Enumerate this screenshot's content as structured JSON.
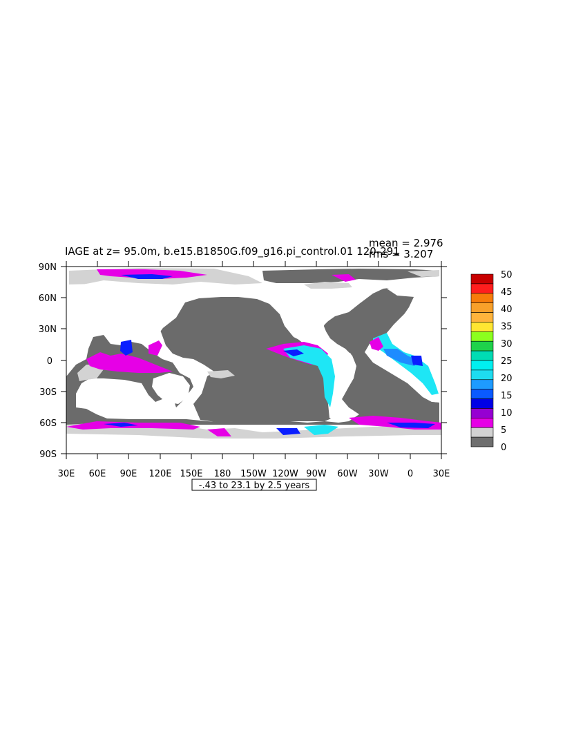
{
  "title": "IAGE at z=  95.0m, b.e15.B1850G.f09_g16.pi_control.01 120-291",
  "stats": {
    "mean": "mean = 2.976",
    "rms": "rms = 3.207"
  },
  "subtitle": "-.43 to 23.1 by 2.5 years",
  "axes": {
    "lat_ticks": [
      "90N",
      "60N",
      "30N",
      "0",
      "30S",
      "60S",
      "90S"
    ],
    "lon_ticks": [
      "30E",
      "60E",
      "90E",
      "120E",
      "150E",
      "180",
      "150W",
      "120W",
      "90W",
      "60W",
      "30W",
      "0",
      "30E"
    ]
  },
  "colorbar": {
    "labels": [
      "50",
      "45",
      "40",
      "35",
      "30",
      "25",
      "20",
      "15",
      "10",
      "5",
      "0"
    ],
    "colors": [
      "#c80000",
      "#ff1e1e",
      "#f77c0a",
      "#f8a02a",
      "#ffb43c",
      "#ffe632",
      "#8cff1e",
      "#1ed24b",
      "#00dcb4",
      "#00f0f0",
      "#1edcf0",
      "#1e9bff",
      "#0a5aff",
      "#0000e6",
      "#9600d2",
      "#e600e6",
      "#d2d2d2",
      "#6e6e6e"
    ]
  },
  "palette": {
    "ocean": "#6b6b6b",
    "land": "#ffffff",
    "shelf": "#d3d3d3",
    "magenta": "#e600e6",
    "purple": "#a000d2",
    "blue": "#0a1eff",
    "mid_blue": "#1e8cff",
    "cyan": "#1ee6f5"
  }
}
